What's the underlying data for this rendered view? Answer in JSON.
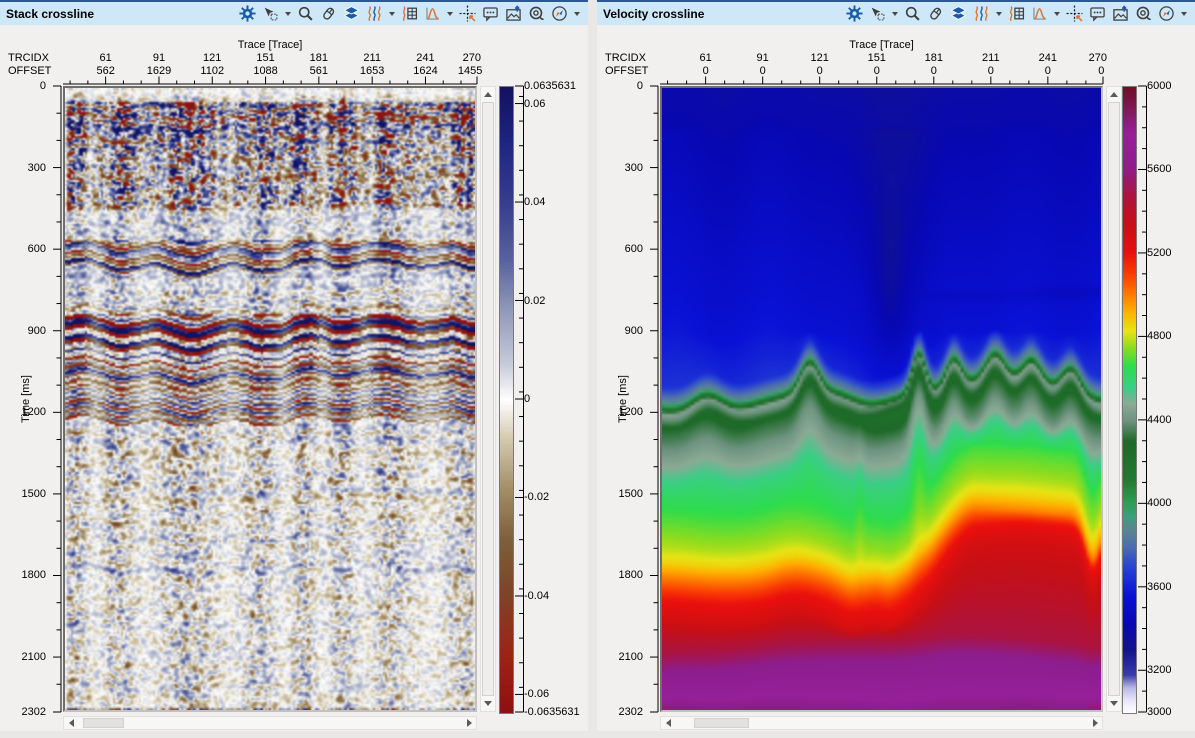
{
  "colors": {
    "titlebar_bg": "#cfe8f8",
    "titlebar_top_border": "#2b579a",
    "panel_bg": "#f1f0ee",
    "icon_blue": "#1a5ba6",
    "icon_orange": "#dd7233",
    "icon_gray": "#3f3f3f"
  },
  "toolbar": {
    "icons": [
      {
        "name": "settings-gear",
        "dropdown": false
      },
      {
        "name": "selection-mode",
        "dropdown": true
      },
      {
        "name": "zoom-magnifier",
        "dropdown": false
      },
      {
        "name": "mouse-controls",
        "dropdown": false
      },
      {
        "name": "layers",
        "dropdown": false
      },
      {
        "name": "wiggle-display",
        "dropdown": true
      },
      {
        "name": "trace-table",
        "dropdown": false
      },
      {
        "name": "histogram",
        "dropdown": true
      },
      {
        "name": "pick-crosshair",
        "dropdown": false
      },
      {
        "name": "annotation",
        "dropdown": false
      },
      {
        "name": "export-image",
        "dropdown": false
      },
      {
        "name": "locate-region",
        "dropdown": false
      },
      {
        "name": "compass-orientation",
        "dropdown": true
      }
    ]
  },
  "panels": [
    {
      "title": "Stack crossline",
      "trace_axis_title": "Trace [Trace]",
      "row1_label": "TRCIDX",
      "row2_label": "OFFSET",
      "time_axis_label": "Time [ms]",
      "trace_ticks": [
        {
          "f": 0.103,
          "trcidx": "61",
          "offset": "562"
        },
        {
          "f": 0.2318,
          "trcidx": "91",
          "offset": "1629"
        },
        {
          "f": 0.3605,
          "trcidx": "121",
          "offset": "1102"
        },
        {
          "f": 0.4893,
          "trcidx": "151",
          "offset": "1088"
        },
        {
          "f": 0.618,
          "trcidx": "181",
          "offset": "561"
        },
        {
          "f": 0.7468,
          "trcidx": "211",
          "offset": "1653"
        },
        {
          "f": 0.8755,
          "trcidx": "241",
          "offset": "1624"
        },
        {
          "f": 1.0,
          "trcidx": "270",
          "offset": "1455"
        }
      ],
      "time_ticks": [
        {
          "v": 0,
          "t": "0"
        },
        {
          "v": 300,
          "t": "300"
        },
        {
          "v": 600,
          "t": "600"
        },
        {
          "v": 900,
          "t": "900"
        },
        {
          "v": 1200,
          "t": "1200"
        },
        {
          "v": 1500,
          "t": "1500"
        },
        {
          "v": 1800,
          "t": "1800"
        },
        {
          "v": 2100,
          "t": "2100"
        },
        {
          "v": 2302,
          "t": "2302"
        }
      ],
      "time_max": 2302,
      "colorbar": {
        "max": 0.0635631,
        "min": -0.0635631,
        "minor_step": 0.005,
        "labels": [
          {
            "v": 0.0635631,
            "t": "0.0635631"
          },
          {
            "v": 0.06,
            "t": "0.06"
          },
          {
            "v": 0.04,
            "t": "0.04"
          },
          {
            "v": 0.02,
            "t": "0.02"
          },
          {
            "v": 0,
            "t": "0"
          },
          {
            "v": -0.02,
            "t": "-0.02"
          },
          {
            "v": -0.04,
            "t": "-0.04"
          },
          {
            "v": -0.06,
            "t": "-0.06"
          },
          {
            "v": -0.0635631,
            "t": "-0.0635631"
          }
        ]
      },
      "h_scroll": {
        "thumb_start": 0.012,
        "thumb_end": 0.12
      }
    },
    {
      "title": "Velocity crossline",
      "trace_axis_title": "Trace [Trace]",
      "row1_label": "TRCIDX",
      "row2_label": "OFFSET",
      "time_axis_label": "Time [ms]",
      "trace_ticks": [
        {
          "f": 0.103,
          "trcidx": "61",
          "offset": "0"
        },
        {
          "f": 0.2318,
          "trcidx": "91",
          "offset": "0"
        },
        {
          "f": 0.3605,
          "trcidx": "121",
          "offset": "0"
        },
        {
          "f": 0.4893,
          "trcidx": "151",
          "offset": "0"
        },
        {
          "f": 0.618,
          "trcidx": "181",
          "offset": "0"
        },
        {
          "f": 0.7468,
          "trcidx": "211",
          "offset": "0"
        },
        {
          "f": 0.8755,
          "trcidx": "241",
          "offset": "0"
        },
        {
          "f": 1.0,
          "trcidx": "270",
          "offset": "0"
        }
      ],
      "time_ticks": [
        {
          "v": 0,
          "t": "0"
        },
        {
          "v": 300,
          "t": "300"
        },
        {
          "v": 600,
          "t": "600"
        },
        {
          "v": 900,
          "t": "900"
        },
        {
          "v": 1200,
          "t": "1200"
        },
        {
          "v": 1500,
          "t": "1500"
        },
        {
          "v": 1800,
          "t": "1800"
        },
        {
          "v": 2100,
          "t": "2100"
        },
        {
          "v": 2302,
          "t": "2302"
        }
      ],
      "time_max": 2302,
      "colorbar": {
        "max": 6000,
        "min": 3000,
        "minor_step": 100,
        "labels": [
          {
            "v": 6000,
            "t": "6000"
          },
          {
            "v": 5600,
            "t": "5600"
          },
          {
            "v": 5200,
            "t": "5200"
          },
          {
            "v": 4800,
            "t": "4800"
          },
          {
            "v": 4400,
            "t": "4400"
          },
          {
            "v": 4000,
            "t": "4000"
          },
          {
            "v": 3600,
            "t": "3600"
          },
          {
            "v": 3200,
            "t": "3200"
          },
          {
            "v": 3000,
            "t": "3000"
          }
        ]
      },
      "h_scroll": {
        "thumb_start": 0.045,
        "thumb_end": 0.178
      }
    }
  ],
  "chart_data": [
    {
      "type": "heatmap",
      "name": "Stack crossline seismic amplitude section",
      "x_axis": {
        "title": "Trace [Trace]",
        "trace_range": [
          37,
          270
        ]
      },
      "y_axis": {
        "title": "Time [ms]",
        "range": [
          0,
          2302
        ]
      },
      "colorbar_range": [
        -0.0635631,
        0.0635631
      ],
      "colormap_stops": [
        [
          -1.0,
          "#8f1010"
        ],
        [
          -0.82,
          "#9c2414"
        ],
        [
          -0.62,
          "#7e4526"
        ],
        [
          -0.45,
          "#7d5f3c"
        ],
        [
          -0.28,
          "#a6906a"
        ],
        [
          -0.12,
          "#d6ccb2"
        ],
        [
          0,
          "#ffffff"
        ],
        [
          0.12,
          "#c6cad8"
        ],
        [
          0.28,
          "#949cbc"
        ],
        [
          0.45,
          "#59629e"
        ],
        [
          0.62,
          "#39408e"
        ],
        [
          0.82,
          "#1f2680"
        ],
        [
          1.0,
          "#12125f"
        ]
      ],
      "reflector_events_ms_amp": [
        [
          60,
          1.0
        ],
        [
          100,
          -0.9
        ],
        [
          140,
          0.95
        ],
        [
          190,
          -0.85
        ],
        [
          240,
          0.9
        ],
        [
          300,
          -0.8
        ],
        [
          360,
          0.8
        ],
        [
          430,
          -0.7
        ],
        [
          520,
          0.5
        ],
        [
          592,
          1.05
        ],
        [
          622,
          -0.95
        ],
        [
          652,
          1.0
        ],
        [
          760,
          -0.5
        ],
        [
          810,
          0.55
        ],
        [
          856,
          -0.9
        ],
        [
          882,
          1.1
        ],
        [
          906,
          -1.0
        ],
        [
          930,
          1.05
        ],
        [
          956,
          -0.95
        ],
        [
          986,
          0.9
        ],
        [
          1012,
          -0.85
        ],
        [
          1062,
          0.95
        ],
        [
          1092,
          -0.9
        ],
        [
          1132,
          0.9
        ],
        [
          1172,
          -0.8
        ],
        [
          1216,
          0.75
        ],
        [
          1290,
          -0.5
        ],
        [
          1360,
          0.5
        ],
        [
          1450,
          -0.45
        ],
        [
          1560,
          0.4
        ],
        [
          1650,
          -0.4
        ],
        [
          1780,
          0.38
        ],
        [
          1900,
          -0.35
        ],
        [
          2050,
          0.3
        ],
        [
          2200,
          -0.3
        ]
      ],
      "amplitude_zones": [
        [
          0,
          45,
          0.35
        ],
        [
          45,
          180,
          1.25
        ],
        [
          180,
          450,
          0.95
        ],
        [
          450,
          560,
          0.55
        ],
        [
          560,
          700,
          1.05
        ],
        [
          700,
          835,
          0.6
        ],
        [
          835,
          1035,
          1.1
        ],
        [
          1035,
          1245,
          0.85
        ],
        [
          1245,
          1510,
          0.55
        ],
        [
          1510,
          1760,
          0.5
        ],
        [
          1760,
          2302,
          0.45
        ]
      ],
      "coherence_zones": [
        [
          0,
          455,
          0.3
        ],
        [
          455,
          560,
          0.45
        ],
        [
          560,
          700,
          0.78
        ],
        [
          700,
          835,
          0.5
        ],
        [
          835,
          1035,
          0.75
        ],
        [
          1035,
          1245,
          0.68
        ],
        [
          1245,
          2302,
          0.4
        ]
      ]
    },
    {
      "type": "heatmap",
      "name": "Velocity crossline section",
      "x_axis": {
        "title": "Trace [Trace]",
        "trace_range": [
          37,
          270
        ]
      },
      "y_axis": {
        "title": "Time [ms]",
        "range": [
          0,
          2302
        ]
      },
      "colorbar_range": [
        3000,
        6000
      ],
      "colormap_stops": [
        [
          3000,
          "#ffffff"
        ],
        [
          3060,
          "#e8e6f6"
        ],
        [
          3120,
          "#b8b6e8"
        ],
        [
          3180,
          "#3c3caa"
        ],
        [
          3300,
          "#14148c"
        ],
        [
          3430,
          "#0808b4"
        ],
        [
          3560,
          "#0a12d6"
        ],
        [
          3700,
          "#2a44d4"
        ],
        [
          3790,
          "#4a6cb4"
        ],
        [
          3870,
          "#5c8494"
        ],
        [
          3940,
          "#3f9e7e"
        ],
        [
          4010,
          "#2f9e52"
        ],
        [
          4120,
          "#217a32"
        ],
        [
          4300,
          "#1e6a28"
        ],
        [
          4400,
          "#6e9480"
        ],
        [
          4480,
          "#8cab96"
        ],
        [
          4560,
          "#3bcf87"
        ],
        [
          4660,
          "#2edd4d"
        ],
        [
          4750,
          "#8cdc20"
        ],
        [
          4830,
          "#e8e515"
        ],
        [
          4920,
          "#ffb400"
        ],
        [
          5010,
          "#ff7800"
        ],
        [
          5110,
          "#fa3a05"
        ],
        [
          5210,
          "#ea0f0f"
        ],
        [
          5340,
          "#c81016"
        ],
        [
          5480,
          "#ad1440"
        ],
        [
          5620,
          "#8e1e8e"
        ],
        [
          5780,
          "#96209b"
        ],
        [
          5900,
          "#801a55"
        ],
        [
          6000,
          "#6e1026"
        ]
      ],
      "velocity_profile_ms_v": [
        [
          0,
          3385
        ],
        [
          500,
          3465
        ],
        [
          900,
          3540
        ],
        [
          1060,
          3615
        ],
        [
          1130,
          3895
        ],
        [
          1165,
          4430
        ],
        [
          1215,
          4265
        ],
        [
          1305,
          4390
        ],
        [
          1450,
          4580
        ],
        [
          1585,
          4680
        ],
        [
          1695,
          4775
        ],
        [
          1755,
          4860
        ],
        [
          1810,
          4995
        ],
        [
          1890,
          5190
        ],
        [
          1970,
          5295
        ],
        [
          2070,
          5480
        ],
        [
          2150,
          5635
        ],
        [
          2302,
          5825
        ]
      ],
      "interface_base_ms": 1152,
      "interface_bumps_u_w_ms": [
        [
          0.1,
          0.05,
          -70
        ],
        [
          0.335,
          0.03,
          -110
        ],
        [
          0.47,
          0.06,
          40
        ],
        [
          0.585,
          0.022,
          -150
        ],
        [
          0.665,
          0.025,
          -100
        ],
        [
          0.76,
          0.03,
          -90
        ],
        [
          0.845,
          0.03,
          -80
        ],
        [
          0.935,
          0.03,
          -90
        ]
      ],
      "yellow_onset_base_ms": 1755,
      "yellow_rise_right_ms": -240
    }
  ]
}
